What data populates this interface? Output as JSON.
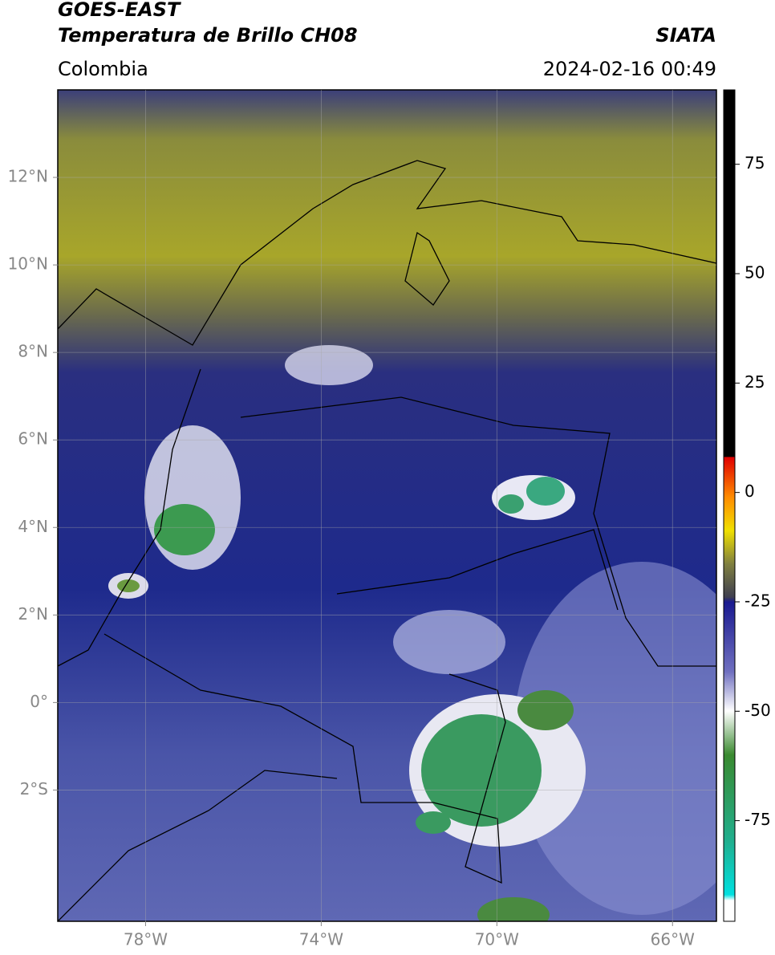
{
  "header": {
    "title": "GOES-EAST",
    "subtitle": "Temperatura de Brillo CH08",
    "source": "SIATA",
    "region": "Colombia",
    "datetime": "2024-02-16 00:49"
  },
  "map": {
    "xlim": [
      -80,
      -65
    ],
    "ylim": [
      -5,
      14
    ],
    "xticks": [
      {
        "value": -78,
        "label": "78°W"
      },
      {
        "value": -74,
        "label": "74°W"
      },
      {
        "value": -70,
        "label": "70°W"
      },
      {
        "value": -66,
        "label": "66°W"
      }
    ],
    "yticks": [
      {
        "value": 12,
        "label": "12°N"
      },
      {
        "value": 10,
        "label": "10°N"
      },
      {
        "value": 8,
        "label": "8°N"
      },
      {
        "value": 6,
        "label": "6°N"
      },
      {
        "value": 4,
        "label": "4°N"
      },
      {
        "value": 2,
        "label": "2°N"
      },
      {
        "value": 0,
        "label": "0°"
      },
      {
        "value": -2,
        "label": "2°S"
      }
    ]
  },
  "colorbar": {
    "clim": [
      -98,
      92
    ],
    "ticks": [
      75,
      50,
      25,
      0,
      -25,
      -50,
      -75
    ]
  }
}
